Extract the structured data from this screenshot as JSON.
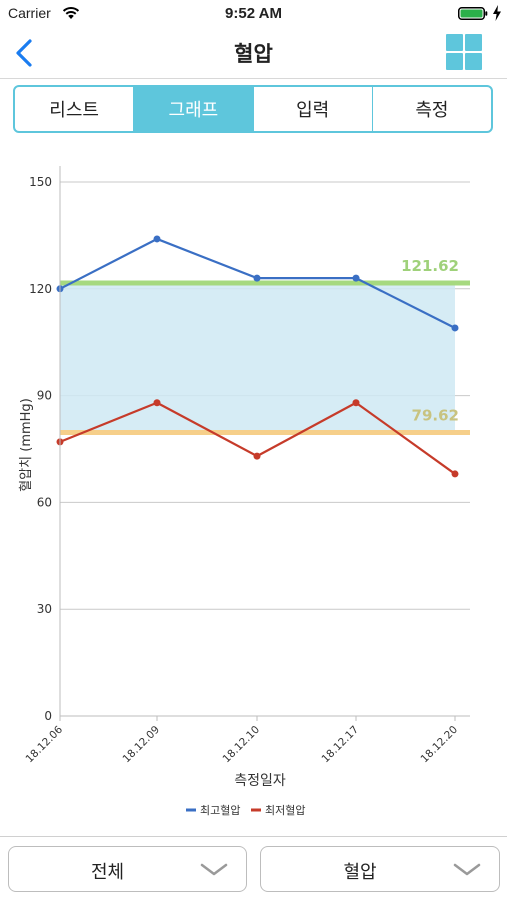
{
  "status_bar": {
    "carrier": "Carrier",
    "time": "9:52 AM"
  },
  "nav": {
    "title": "혈압",
    "back_icon": "chevron-left-icon",
    "menu_icon": "grid-icon"
  },
  "tabs": [
    {
      "label": "리스트",
      "active": false
    },
    {
      "label": "그래프",
      "active": true
    },
    {
      "label": "입력",
      "active": false
    },
    {
      "label": "측정",
      "active": false
    }
  ],
  "chart_data": {
    "type": "line",
    "xlabel": "측정일자",
    "ylabel": "혈압치 (mmHg)",
    "ylim": [
      0,
      150
    ],
    "yticks": [
      0,
      30,
      60,
      90,
      120,
      150
    ],
    "grid": true,
    "legend_position": "bottom-center",
    "categories": [
      "18.12.06",
      "18.12.09",
      "18.12.10",
      "18.12.17",
      "18.12.20"
    ],
    "series": [
      {
        "name": "최고혈압",
        "values": [
          120,
          134,
          123,
          123,
          109
        ],
        "color": "#3a6fc4"
      },
      {
        "name": "최저혈압",
        "values": [
          77,
          88,
          73,
          88,
          68
        ],
        "color": "#c63b2a"
      }
    ],
    "reference_lines": [
      {
        "label": "121.62",
        "value": 121.62,
        "color": "#a6d97f",
        "label_color": "#9fd17a"
      },
      {
        "label": "79.62",
        "value": 79.62,
        "color": "#f6cf8a",
        "label_color": "#c8c380"
      }
    ],
    "band": {
      "from": 79.62,
      "to": 121.62,
      "color": "#cfe9f3"
    }
  },
  "bottom": {
    "period_select": "전체",
    "type_select": "혈압",
    "chevron_icon": "chevron-down-icon"
  },
  "colors": {
    "accent": "#5ec6dc",
    "back": "#1a7cf0"
  }
}
